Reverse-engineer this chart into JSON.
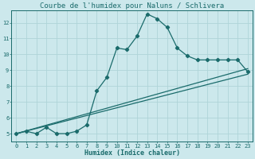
{
  "title": "Courbe de l'humidex pour Naluns / Schlivera",
  "xlabel": "Humidex (Indice chaleur)",
  "background_color": "#cce8ec",
  "grid_color": "#afd4d8",
  "line_color": "#1a6b6b",
  "xlim": [
    -0.5,
    23.5
  ],
  "ylim": [
    4.5,
    12.8
  ],
  "xticks": [
    0,
    1,
    2,
    3,
    4,
    5,
    6,
    7,
    8,
    9,
    10,
    11,
    12,
    13,
    14,
    15,
    16,
    17,
    18,
    19,
    20,
    21,
    22,
    23
  ],
  "yticks": [
    5,
    6,
    7,
    8,
    9,
    10,
    11,
    12
  ],
  "main_x": [
    0,
    1,
    2,
    3,
    4,
    5,
    6,
    7,
    8,
    9,
    10,
    11,
    12,
    13,
    14,
    15,
    16,
    17,
    18,
    19,
    20,
    21,
    22,
    23
  ],
  "main_y": [
    5.0,
    5.15,
    5.0,
    5.4,
    5.0,
    5.0,
    5.15,
    5.55,
    7.7,
    8.55,
    10.4,
    10.3,
    11.15,
    12.55,
    12.25,
    11.7,
    10.4,
    9.9,
    9.65,
    9.65,
    9.65,
    9.65,
    9.65,
    8.9
  ],
  "line2_x": [
    0,
    23
  ],
  "line2_y": [
    5.0,
    8.75
  ],
  "line3_x": [
    0,
    23
  ],
  "line3_y": [
    5.0,
    9.1
  ],
  "marker_size": 2.2,
  "line_width": 0.9,
  "tick_fontsize": 5.0,
  "xlabel_fontsize": 6.0,
  "title_fontsize": 6.5
}
